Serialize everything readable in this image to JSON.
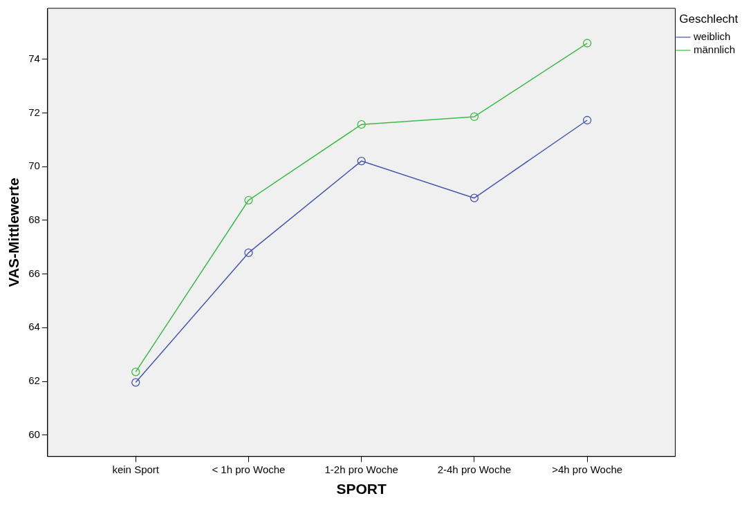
{
  "chart_data": {
    "type": "line",
    "xlabel": "SPORT",
    "ylabel": "VAS-Mittlewerte",
    "legend_title": "Geschlecht",
    "categories": [
      "kein Sport",
      "< 1h pro Woche",
      "1-2h pro Woche",
      "2-4h pro Woche",
      ">4h pro Woche"
    ],
    "series": [
      {
        "name": "weiblich",
        "color": "#4556ac",
        "values": [
          61.96,
          66.79,
          70.21,
          68.83,
          71.73
        ]
      },
      {
        "name": "männlich",
        "color": "#3dbb47",
        "values": [
          62.35,
          68.75,
          71.57,
          71.86,
          74.6
        ]
      }
    ],
    "ylim": [
      59.2,
      75.9
    ],
    "yticks": [
      60,
      62,
      64,
      66,
      68,
      70,
      72,
      74
    ],
    "grid": false,
    "legend": "top right",
    "marker": "circle",
    "line_style": "solid"
  }
}
